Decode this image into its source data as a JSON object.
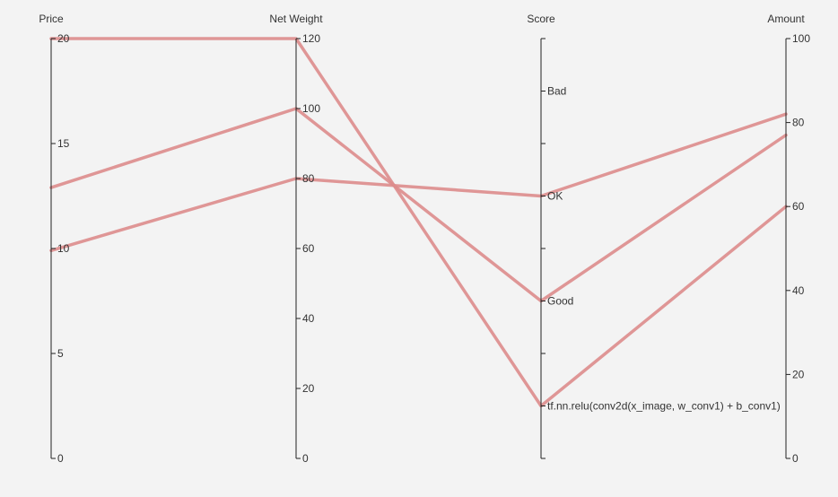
{
  "chart_data": {
    "type": "parallel",
    "line_color": "#dd8c8c",
    "dimensions": [
      {
        "name": "Price",
        "kind": "value",
        "min": 0,
        "max": 20,
        "ticks": [
          0,
          5,
          10,
          15,
          20
        ]
      },
      {
        "name": "Net Weight",
        "kind": "value",
        "min": 0,
        "max": 120,
        "ticks": [
          0,
          20,
          40,
          60,
          80,
          100,
          120
        ]
      },
      {
        "name": "Score",
        "kind": "category",
        "categories": [
          "tf.nn.relu(conv2d(x_image, w_conv1) + b_conv1)",
          "Good",
          "OK",
          "Bad"
        ]
      },
      {
        "name": "Amount",
        "kind": "value",
        "min": 0,
        "max": 100,
        "ticks": [
          0,
          20,
          40,
          60,
          80,
          100
        ]
      }
    ],
    "rows": [
      [
        12.9,
        100,
        "Good",
        77
      ],
      [
        9.9,
        80,
        "OK",
        82
      ],
      [
        20,
        120,
        "tf.nn.relu(conv2d(x_image, w_conv1) + b_conv1)",
        60
      ]
    ]
  }
}
